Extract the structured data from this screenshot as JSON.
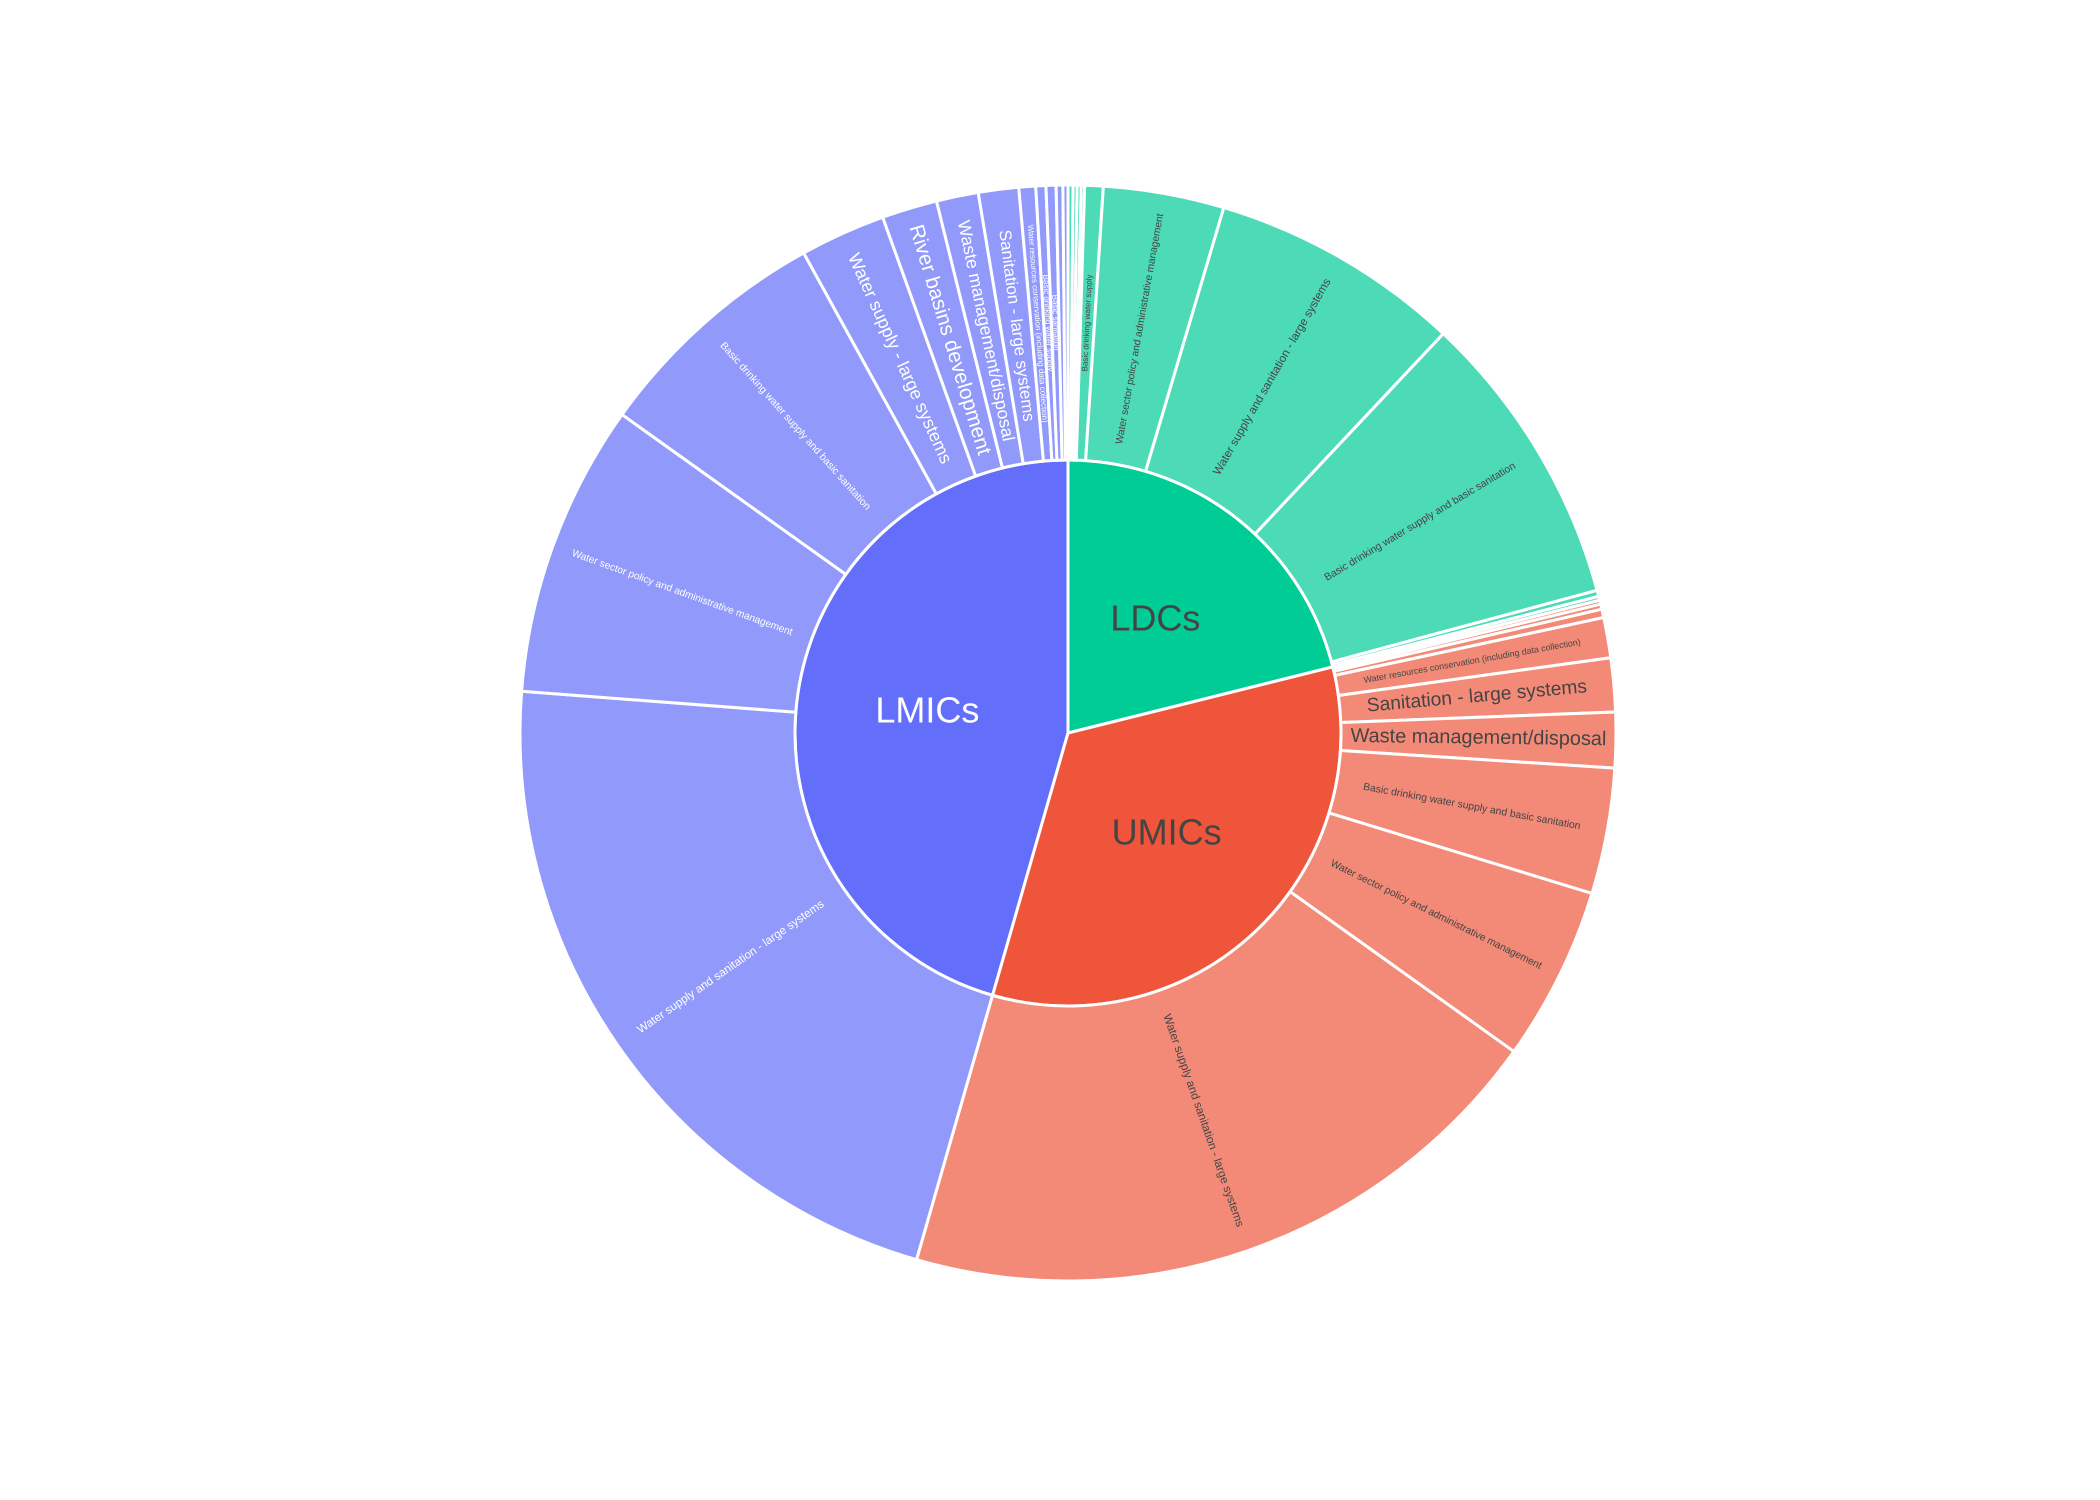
{
  "chart_data": {
    "type": "sunburst",
    "title": "",
    "colors": {
      "LMICs": "#636efa",
      "LMICs_leaf": "#9199fb",
      "UMICs": "#ef553b",
      "UMICs_leaf": "#f38a77",
      "LDCs": "#00cc96",
      "LDCs_leaf": "#4ddab6",
      "border": "#ffffff",
      "text_light": "#ffffff",
      "text_dark": "#444444"
    },
    "groups": [
      {
        "name": "LMICs",
        "text_color": "text_light",
        "children": [
          {
            "label": "Water supply and sanitation - large systems",
            "value": 22.0
          },
          {
            "label": "Water sector policy and administrative management",
            "value": 8.75
          },
          {
            "label": "Basic drinking water supply and basic sanitation",
            "value": 7.2
          },
          {
            "label": "Water supply - large systems",
            "value": 2.55
          },
          {
            "label": "River basins development",
            "value": 1.65
          },
          {
            "label": "Waste management/disposal",
            "value": 1.25
          },
          {
            "label": "Sanitation - large systems",
            "value": 1.2
          },
          {
            "label": "Water resources conservation (including data collection)",
            "value": 0.5
          },
          {
            "label": "Basic drinking water supply",
            "value": 0.3
          },
          {
            "label": "Basic sanitation",
            "value": 0.3
          },
          {
            "label": "",
            "value": 0.2
          },
          {
            "label": "",
            "value": 0.15
          }
        ]
      },
      {
        "name": "LDCs",
        "text_color": "text_dark",
        "children": [
          {
            "label": "",
            "value": 0.15
          },
          {
            "label": "",
            "value": 0.12
          },
          {
            "label": "",
            "value": 0.12
          },
          {
            "label": "",
            "value": 0.1
          },
          {
            "label": "Basic drinking water supply",
            "value": 0.55
          },
          {
            "label": "Water sector policy and administrative management",
            "value": 3.6
          },
          {
            "label": "Water supply and sanitation - large systems",
            "value": 7.5
          },
          {
            "label": "Basic drinking water supply and basic sanitation",
            "value": 8.9
          },
          {
            "label": "",
            "value": 0.18
          },
          {
            "label": "",
            "value": 0.12
          }
        ]
      },
      {
        "name": "UMICs",
        "text_color": "text_dark",
        "children": [
          {
            "label": "",
            "value": 0.12
          },
          {
            "label": "",
            "value": 0.15
          },
          {
            "label": "",
            "value": 0.25
          },
          {
            "label": "Water resources conservation (including data collection)",
            "value": 1.2
          },
          {
            "label": "Sanitation - large systems",
            "value": 1.6
          },
          {
            "label": "Waste management/disposal",
            "value": 1.65
          },
          {
            "label": "Basic drinking water supply and basic sanitation",
            "value": 3.75
          },
          {
            "label": "Water sector policy and administrative management",
            "value": 5.2
          },
          {
            "label": "Water supply and sanitation - large systems",
            "value": 19.8
          }
        ]
      }
    ]
  }
}
